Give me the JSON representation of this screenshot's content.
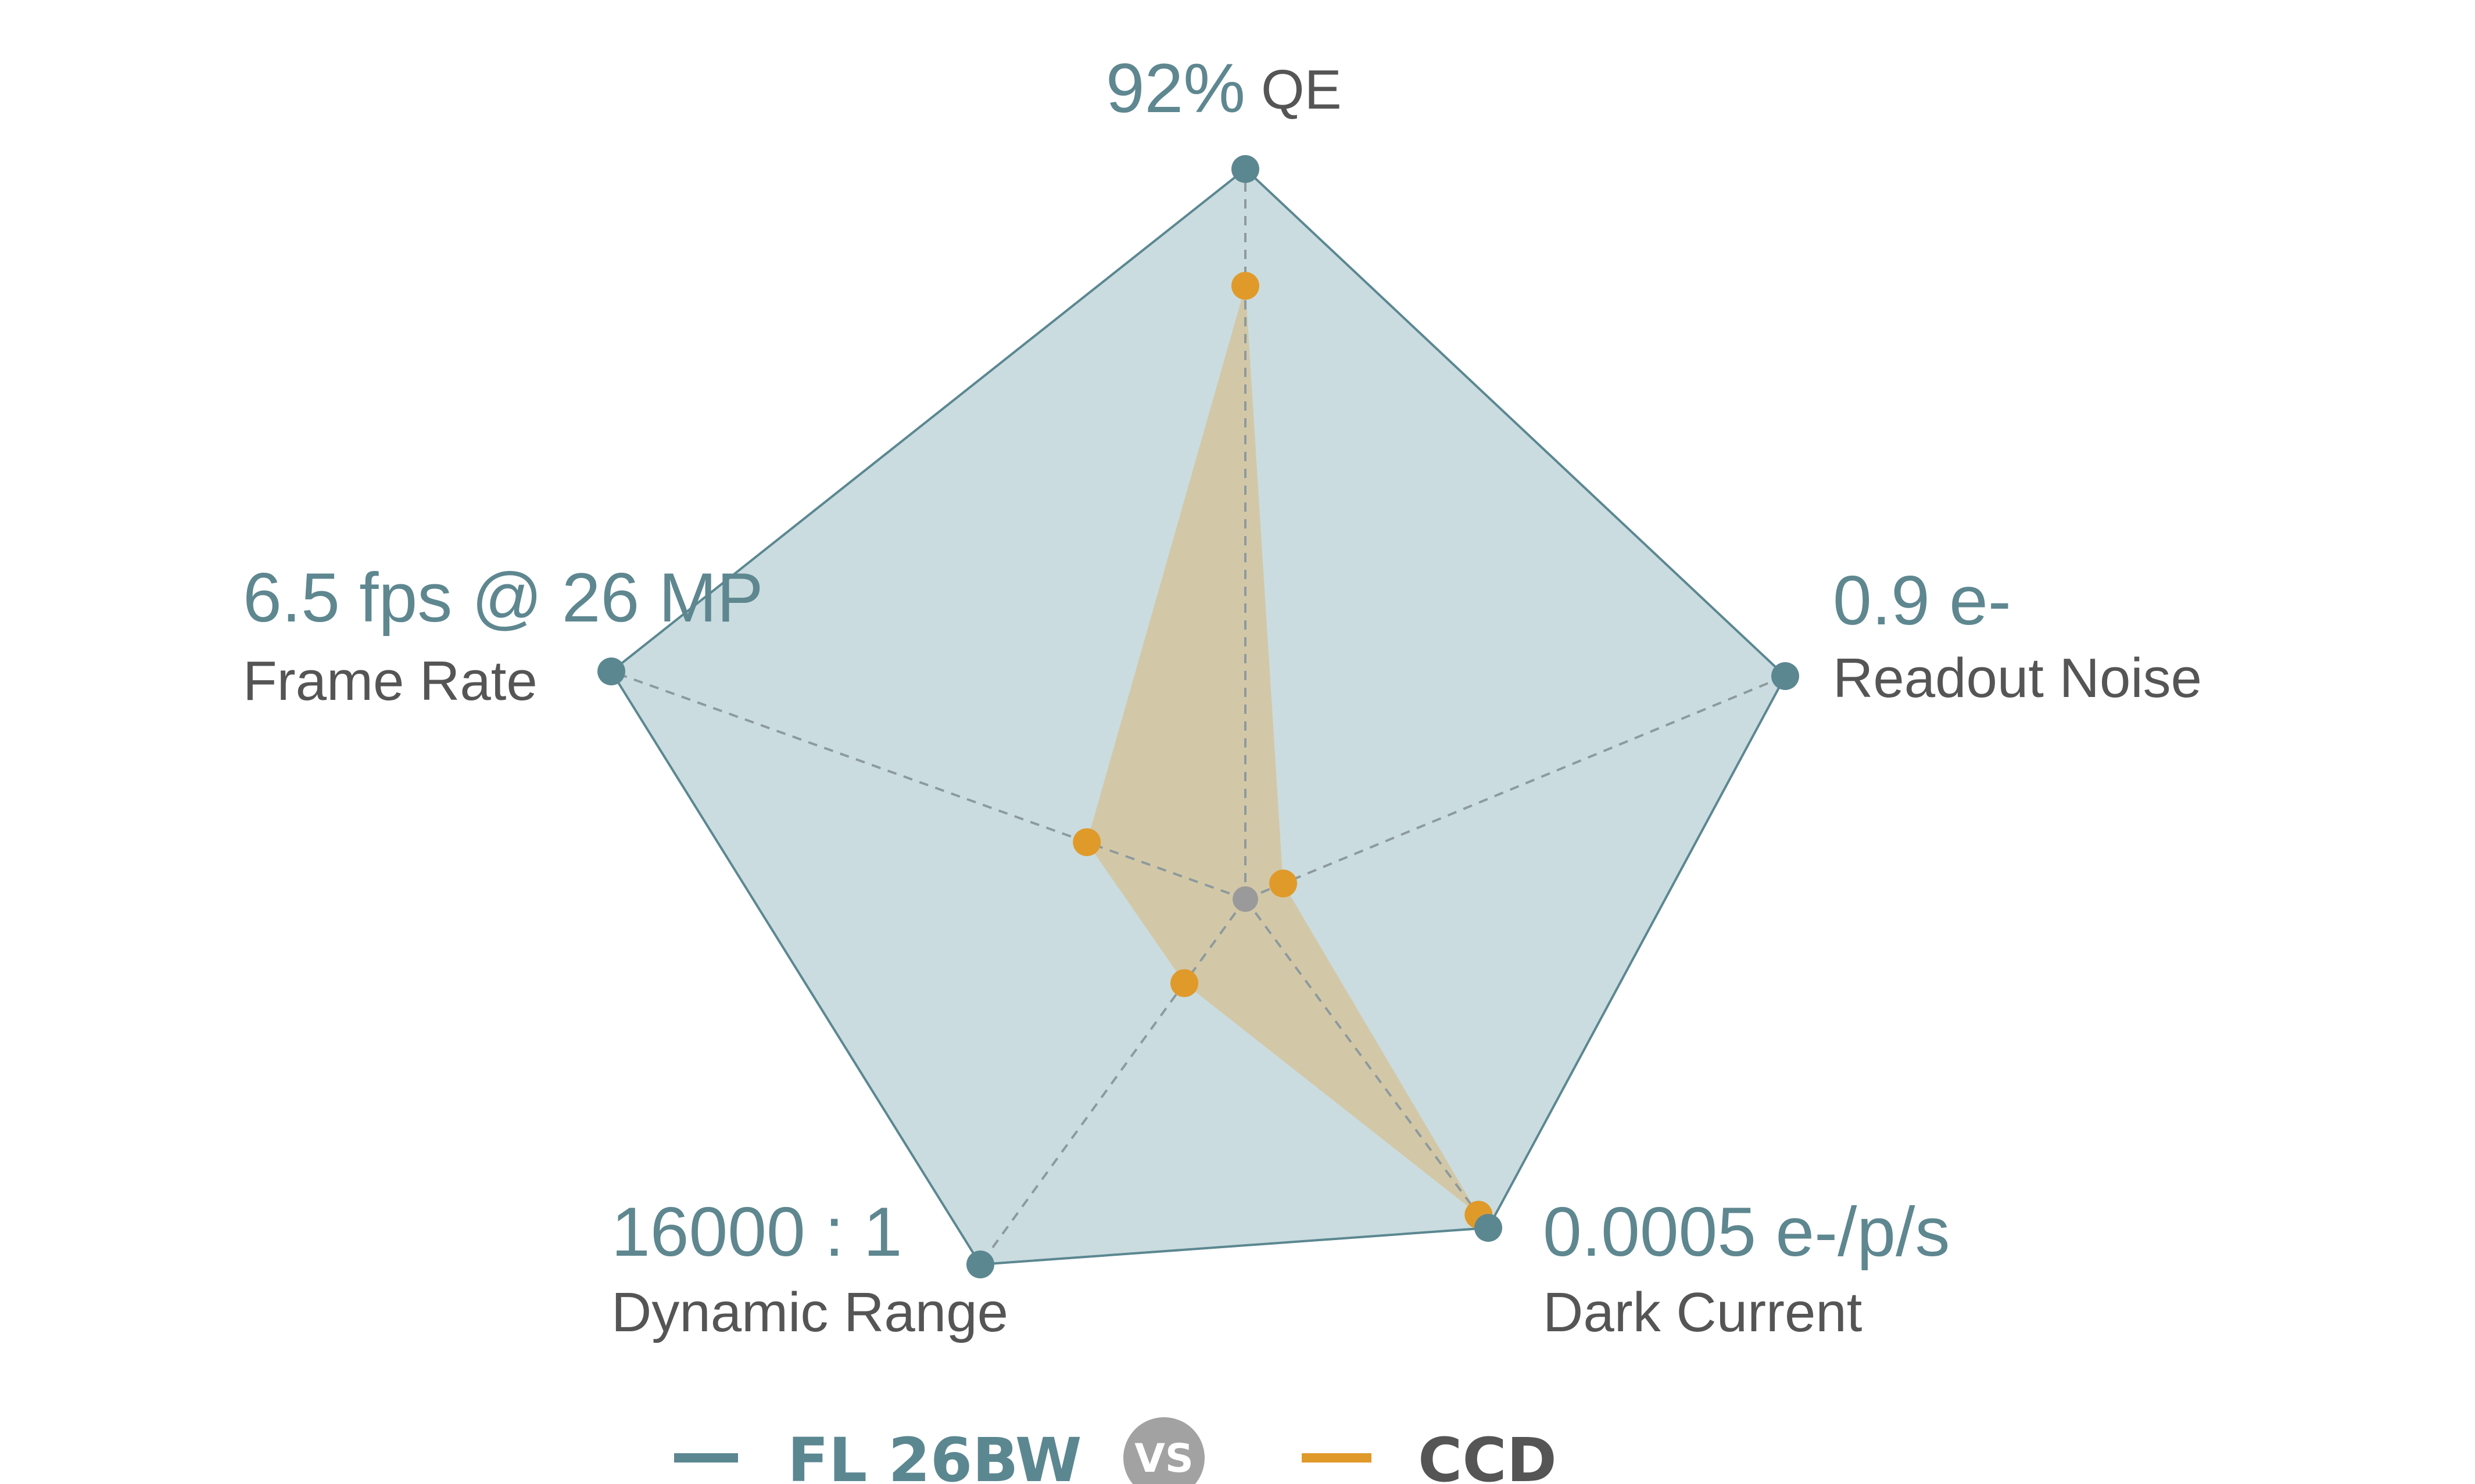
{
  "chart_data": {
    "type": "radar",
    "axes": [
      {
        "value_label": "92%",
        "name": "QE"
      },
      {
        "value_label": "0.9 e-",
        "name": "Readout Noise"
      },
      {
        "value_label": "0.0005 e-/p/s",
        "name": "Dark Current"
      },
      {
        "value_label": "16000 : 1",
        "name": "Dynamic Range"
      },
      {
        "value_label": "6.5 fps @ 26 MP",
        "name": "Frame Rate"
      }
    ],
    "range": [
      0,
      1
    ],
    "grid": false,
    "legend_position": "bottom",
    "series": [
      {
        "name": "FL 26BW",
        "values": [
          1.0,
          1.0,
          1.0,
          1.0,
          1.0
        ],
        "color": "#5b8791",
        "fill": "#cadcdf"
      },
      {
        "name": "CCD",
        "values": [
          0.84,
          0.07,
          0.96,
          0.23,
          0.25
        ],
        "color": "#e09a2a",
        "fill": "#d3c5a3"
      }
    ],
    "center_color": "#9a9a9a",
    "value_label_color": "#5e8790",
    "name_label_color": "#555555"
  },
  "legend": {
    "separator": "VS"
  }
}
